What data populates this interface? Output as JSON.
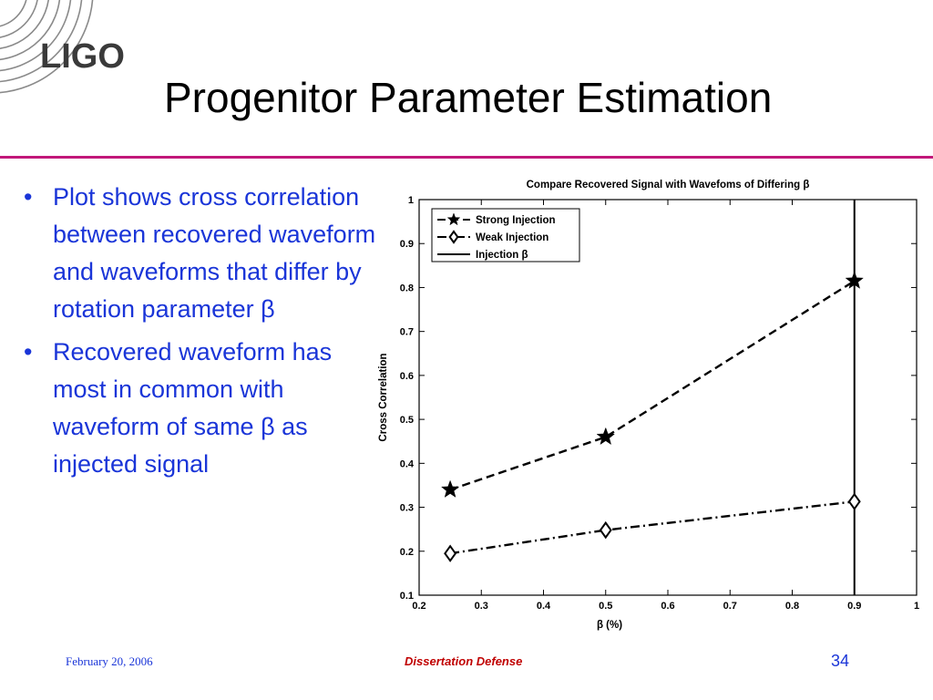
{
  "slide": {
    "logo_text": "LIGO",
    "title": "Progenitor Parameter Estimation",
    "bullets": [
      "Plot shows cross correlation between recovered waveform and waveforms that differ by rotation parameter β",
      "Recovered waveform has most in common with waveform of same β as injected signal"
    ],
    "footer_date": "February 20, 2006",
    "footer_center": "Dissertation Defense",
    "page_number": "34",
    "colors": {
      "accent_rule": "#c2187a",
      "bullet_text": "#1a35d8",
      "footer_center": "#c00000"
    }
  },
  "chart_data": {
    "type": "line",
    "title": "Compare Recovered Signal with Wavefoms of Differing β",
    "xlabel": "β (%)",
    "ylabel": "Cross Correlation",
    "xlim": [
      0.2,
      1
    ],
    "ylim": [
      0.1,
      1
    ],
    "xticks": [
      "0.2",
      "0.3",
      "0.4",
      "0.5",
      "0.6",
      "0.7",
      "0.8",
      "0.9",
      "1"
    ],
    "yticks": [
      "0.1",
      "0.2",
      "0.3",
      "0.4",
      "0.5",
      "0.6",
      "0.7",
      "0.8",
      "0.9",
      "1"
    ],
    "grid": false,
    "legend_position": "top-left",
    "series": [
      {
        "name": "Strong Injection",
        "marker": "star",
        "line": "dashed",
        "x": [
          0.25,
          0.5,
          0.9
        ],
        "y": [
          0.34,
          0.46,
          0.815
        ]
      },
      {
        "name": "Weak Injection",
        "marker": "diamond",
        "line": "dash-dot",
        "x": [
          0.25,
          0.5,
          0.9
        ],
        "y": [
          0.195,
          0.248,
          0.313
        ]
      }
    ],
    "vline": {
      "name": "Injection β",
      "x": 0.9
    }
  }
}
